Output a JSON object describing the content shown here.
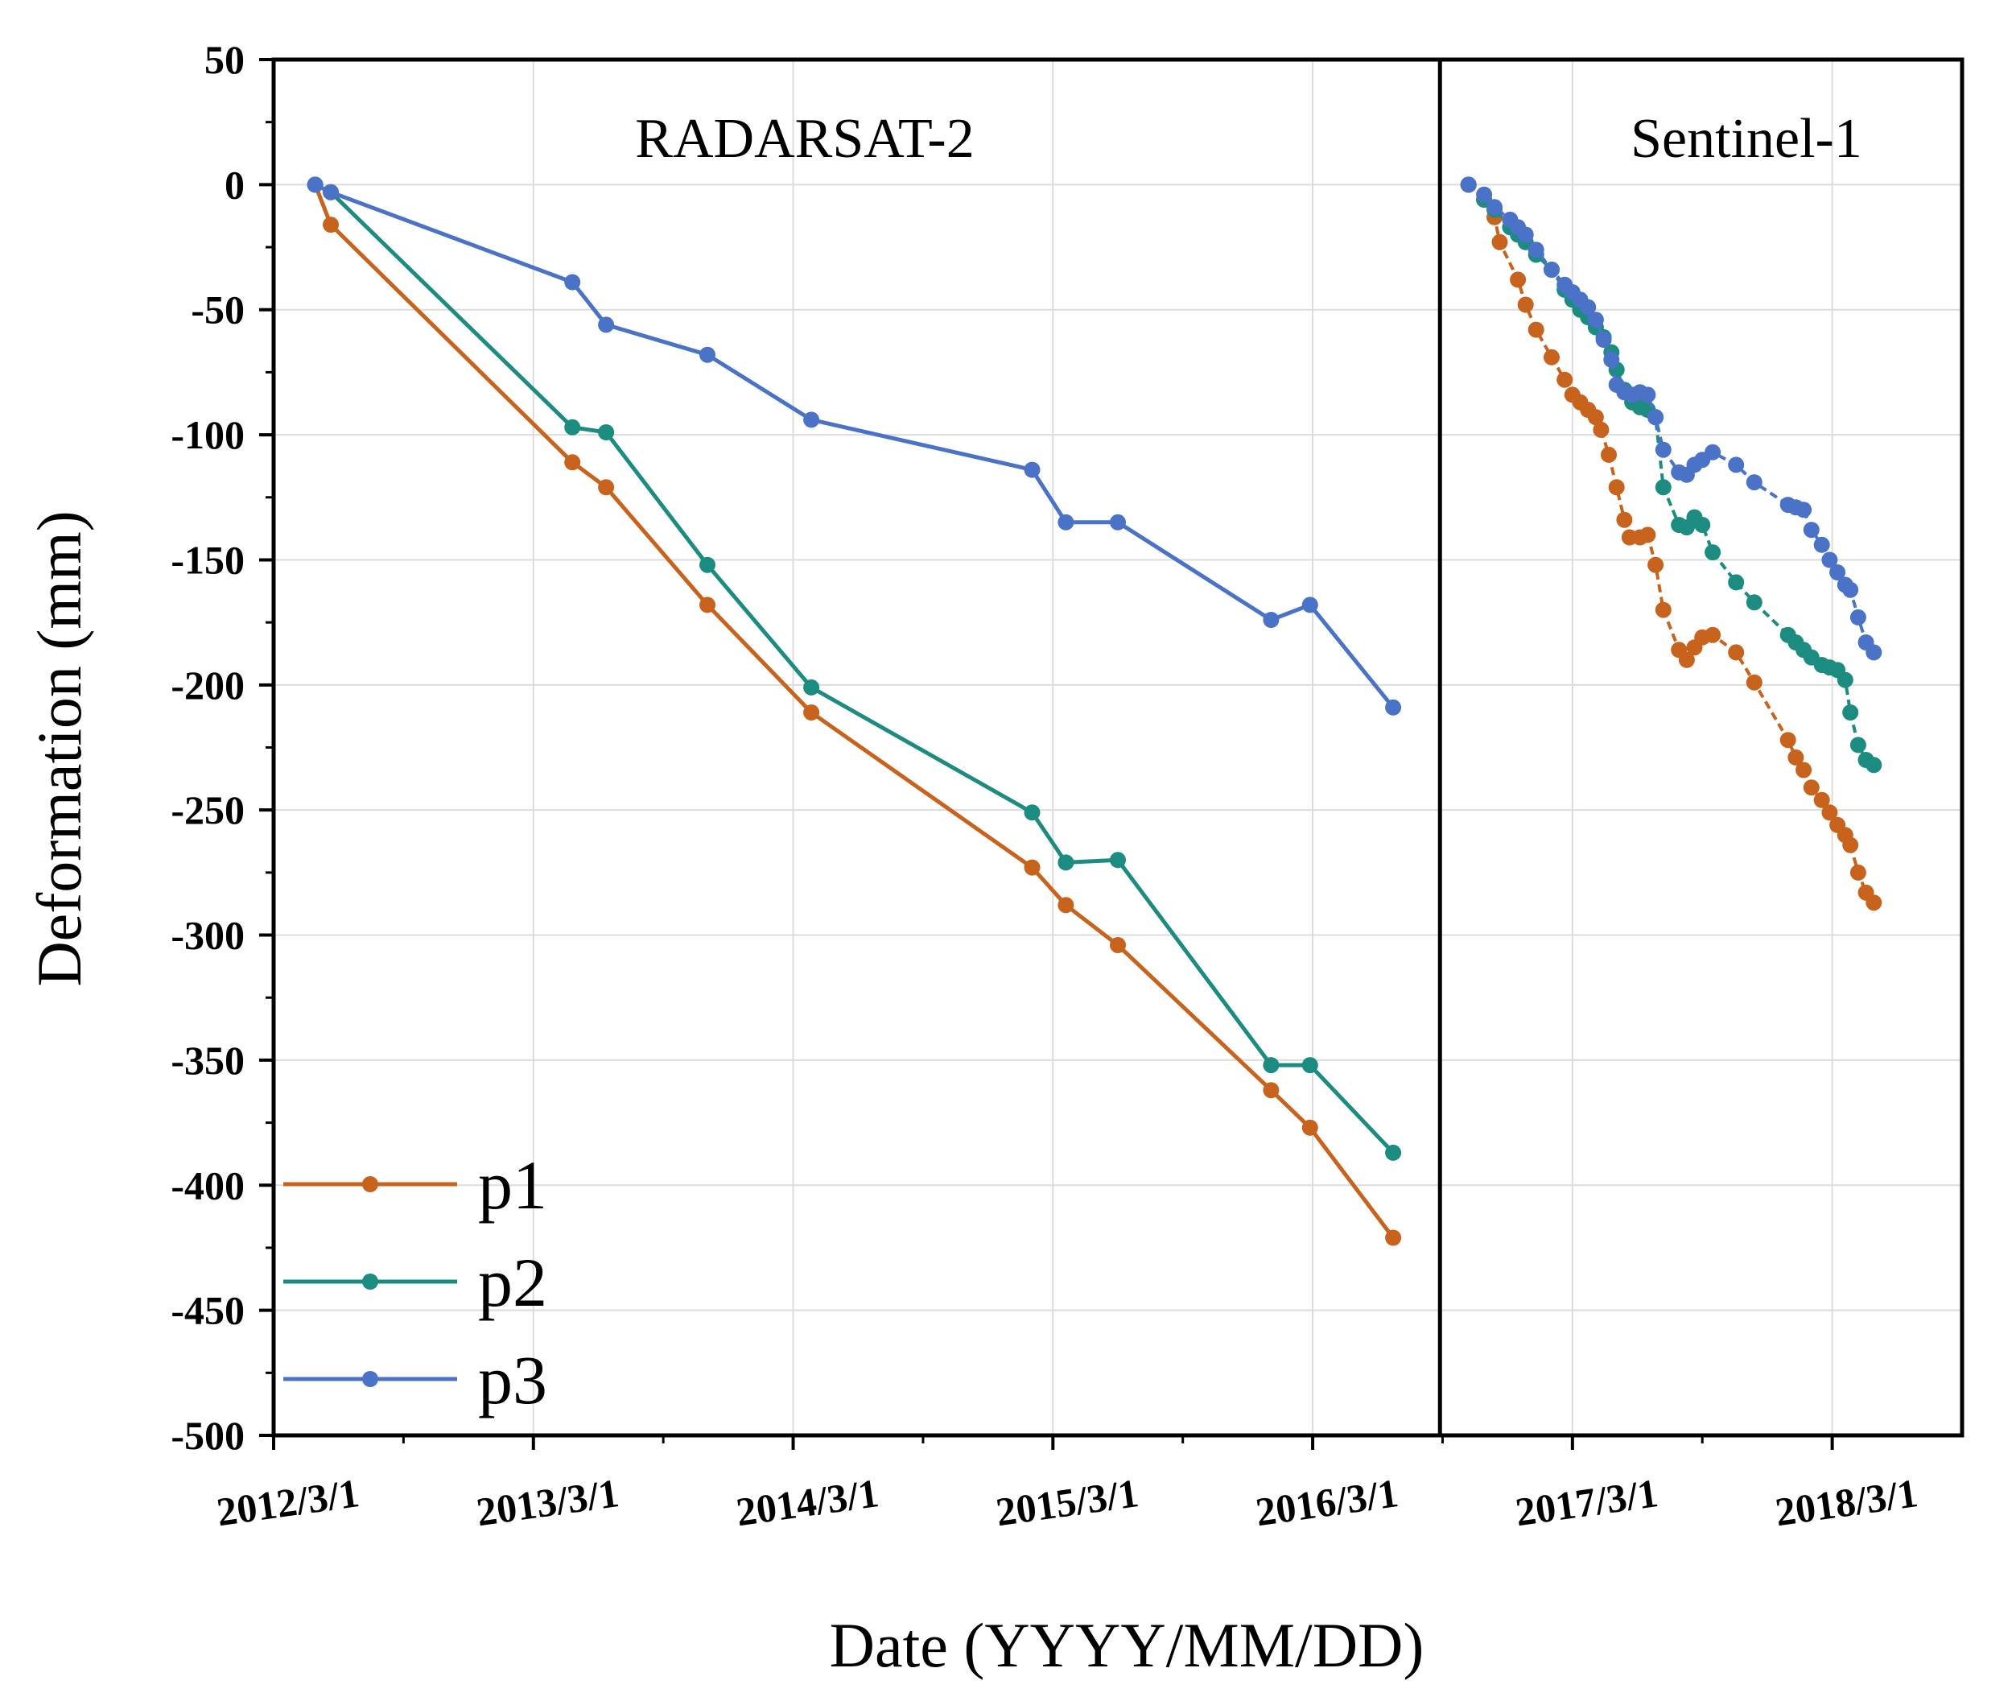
{
  "chart_data": {
    "type": "line",
    "xlabel": "Date (YYYY/MM/DD)",
    "ylabel": "Deformation (mm)",
    "ylim": [
      -500,
      50
    ],
    "yticks": [
      50,
      0,
      -50,
      -100,
      -150,
      -200,
      -250,
      -300,
      -350,
      -400,
      -450,
      -500
    ],
    "xlim": [
      2012.17,
      2018.67
    ],
    "xticks": [
      {
        "label": "2012/3/1",
        "value": 2012.17
      },
      {
        "label": "2013/3/1",
        "value": 2013.17
      },
      {
        "label": "2014/3/1",
        "value": 2014.17
      },
      {
        "label": "2015/3/1",
        "value": 2015.17
      },
      {
        "label": "2016/3/1",
        "value": 2016.17
      },
      {
        "label": "2017/3/1",
        "value": 2017.17
      },
      {
        "label": "2018/3/1",
        "value": 2018.17
      }
    ],
    "grid": true,
    "legend": "bottom-left",
    "panels": [
      {
        "label": "RADARSAT-2",
        "xrange": [
          2012.17,
          2016.66
        ]
      },
      {
        "label": "Sentinel-1",
        "xrange": [
          2016.66,
          2018.67
        ]
      }
    ],
    "series": [
      {
        "name": "p1",
        "color": "#c8631e",
        "segments": [
          {
            "panel": "RADARSAT-2",
            "points": [
              [
                2012.33,
                0
              ],
              [
                2012.39,
                -16
              ],
              [
                2013.32,
                -111
              ],
              [
                2013.45,
                -121
              ],
              [
                2013.84,
                -168
              ],
              [
                2014.24,
                -211
              ],
              [
                2015.09,
                -273
              ],
              [
                2015.22,
                -288
              ],
              [
                2015.42,
                -304
              ],
              [
                2016.01,
                -362
              ],
              [
                2016.16,
                -377
              ],
              [
                2016.48,
                -421
              ]
            ]
          },
          {
            "panel": "Sentinel-1",
            "points": [
              [
                2016.77,
                0
              ],
              [
                2016.83,
                -6
              ],
              [
                2016.87,
                -13
              ],
              [
                2016.89,
                -23
              ],
              [
                2016.96,
                -38
              ],
              [
                2016.99,
                -48
              ],
              [
                2017.03,
                -58
              ],
              [
                2017.09,
                -69
              ],
              [
                2017.14,
                -78
              ],
              [
                2017.17,
                -84
              ],
              [
                2017.2,
                -87
              ],
              [
                2017.23,
                -90
              ],
              [
                2017.26,
                -93
              ],
              [
                2017.28,
                -98
              ],
              [
                2017.31,
                -108
              ],
              [
                2017.34,
                -121
              ],
              [
                2017.37,
                -134
              ],
              [
                2017.39,
                -141
              ],
              [
                2017.43,
                -141
              ],
              [
                2017.46,
                -140
              ],
              [
                2017.49,
                -152
              ],
              [
                2017.52,
                -170
              ],
              [
                2017.58,
                -186
              ],
              [
                2017.61,
                -190
              ],
              [
                2017.64,
                -185
              ],
              [
                2017.67,
                -181
              ],
              [
                2017.71,
                -180
              ],
              [
                2017.8,
                -187
              ],
              [
                2017.87,
                -199
              ],
              [
                2018.0,
                -222
              ],
              [
                2018.03,
                -229
              ],
              [
                2018.06,
                -234
              ],
              [
                2018.09,
                -241
              ],
              [
                2018.13,
                -246
              ],
              [
                2018.16,
                -251
              ],
              [
                2018.19,
                -256
              ],
              [
                2018.22,
                -260
              ],
              [
                2018.24,
                -264
              ],
              [
                2018.27,
                -275
              ],
              [
                2018.3,
                -283
              ],
              [
                2018.33,
                -287
              ]
            ]
          }
        ]
      },
      {
        "name": "p2",
        "color": "#1d8c80",
        "segments": [
          {
            "panel": "RADARSAT-2",
            "points": [
              [
                2012.33,
                0
              ],
              [
                2012.39,
                -3
              ],
              [
                2013.32,
                -97
              ],
              [
                2013.45,
                -99
              ],
              [
                2013.84,
                -152
              ],
              [
                2014.24,
                -201
              ],
              [
                2015.09,
                -251
              ],
              [
                2015.22,
                -271
              ],
              [
                2015.42,
                -270
              ],
              [
                2016.01,
                -352
              ],
              [
                2016.16,
                -352
              ],
              [
                2016.48,
                -387
              ]
            ]
          },
          {
            "panel": "Sentinel-1",
            "points": [
              [
                2016.77,
                0
              ],
              [
                2016.83,
                -6
              ],
              [
                2016.87,
                -10
              ],
              [
                2016.93,
                -17
              ],
              [
                2016.96,
                -20
              ],
              [
                2016.99,
                -23
              ],
              [
                2017.03,
                -28
              ],
              [
                2017.09,
                -34
              ],
              [
                2017.14,
                -42
              ],
              [
                2017.17,
                -46
              ],
              [
                2017.2,
                -50
              ],
              [
                2017.23,
                -53
              ],
              [
                2017.26,
                -57
              ],
              [
                2017.29,
                -61
              ],
              [
                2017.32,
                -67
              ],
              [
                2017.34,
                -74
              ],
              [
                2017.37,
                -82
              ],
              [
                2017.4,
                -87
              ],
              [
                2017.43,
                -89
              ],
              [
                2017.46,
                -90
              ],
              [
                2017.49,
                -93
              ],
              [
                2017.52,
                -121
              ],
              [
                2017.58,
                -136
              ],
              [
                2017.61,
                -137
              ],
              [
                2017.64,
                -133
              ],
              [
                2017.67,
                -136
              ],
              [
                2017.71,
                -147
              ],
              [
                2017.8,
                -159
              ],
              [
                2017.87,
                -167
              ],
              [
                2018.0,
                -180
              ],
              [
                2018.03,
                -183
              ],
              [
                2018.06,
                -186
              ],
              [
                2018.09,
                -189
              ],
              [
                2018.13,
                -192
              ],
              [
                2018.16,
                -193
              ],
              [
                2018.19,
                -194
              ],
              [
                2018.22,
                -198
              ],
              [
                2018.24,
                -211
              ],
              [
                2018.27,
                -224
              ],
              [
                2018.3,
                -230
              ],
              [
                2018.33,
                -232
              ]
            ]
          }
        ]
      },
      {
        "name": "p3",
        "color": "#4a73c8",
        "segments": [
          {
            "panel": "RADARSAT-2",
            "points": [
              [
                2012.33,
                0
              ],
              [
                2012.39,
                -3
              ],
              [
                2013.32,
                -39
              ],
              [
                2013.45,
                -56
              ],
              [
                2013.84,
                -68
              ],
              [
                2014.24,
                -94
              ],
              [
                2015.09,
                -114
              ],
              [
                2015.22,
                -135
              ],
              [
                2015.42,
                -135
              ],
              [
                2016.01,
                -174
              ],
              [
                2016.16,
                -168
              ],
              [
                2016.48,
                -209
              ]
            ]
          },
          {
            "panel": "Sentinel-1",
            "points": [
              [
                2016.77,
                0
              ],
              [
                2016.83,
                -4
              ],
              [
                2016.87,
                -9
              ],
              [
                2016.93,
                -14
              ],
              [
                2016.96,
                -17
              ],
              [
                2016.99,
                -20
              ],
              [
                2017.03,
                -26
              ],
              [
                2017.09,
                -34
              ],
              [
                2017.14,
                -40
              ],
              [
                2017.17,
                -43
              ],
              [
                2017.2,
                -46
              ],
              [
                2017.23,
                -49
              ],
              [
                2017.26,
                -54
              ],
              [
                2017.29,
                -62
              ],
              [
                2017.32,
                -70
              ],
              [
                2017.34,
                -80
              ],
              [
                2017.37,
                -83
              ],
              [
                2017.4,
                -84
              ],
              [
                2017.43,
                -83
              ],
              [
                2017.46,
                -84
              ],
              [
                2017.49,
                -93
              ],
              [
                2017.52,
                -106
              ],
              [
                2017.58,
                -115
              ],
              [
                2017.61,
                -116
              ],
              [
                2017.64,
                -112
              ],
              [
                2017.67,
                -110
              ],
              [
                2017.71,
                -107
              ],
              [
                2017.8,
                -112
              ],
              [
                2017.87,
                -119
              ],
              [
                2018.0,
                -128
              ],
              [
                2018.03,
                -129
              ],
              [
                2018.06,
                -130
              ],
              [
                2018.09,
                -138
              ],
              [
                2018.13,
                -144
              ],
              [
                2018.16,
                -150
              ],
              [
                2018.19,
                -155
              ],
              [
                2018.22,
                -160
              ],
              [
                2018.24,
                -162
              ],
              [
                2018.27,
                -173
              ],
              [
                2018.3,
                -183
              ],
              [
                2018.33,
                -187
              ]
            ]
          }
        ]
      }
    ]
  }
}
